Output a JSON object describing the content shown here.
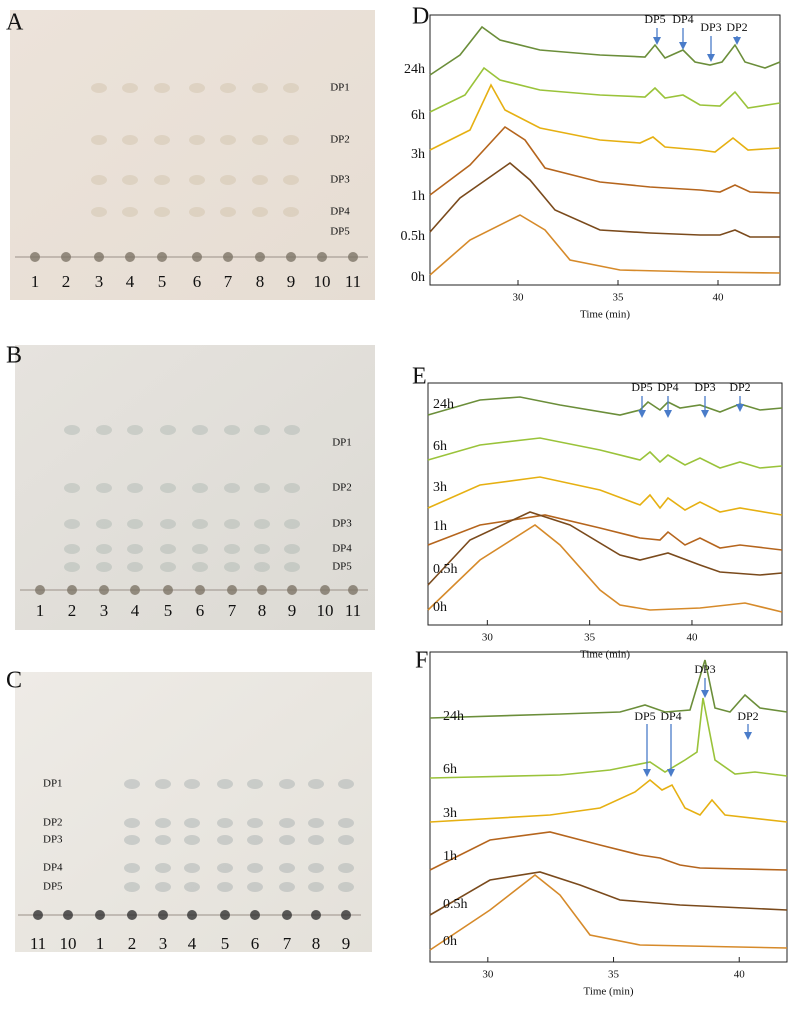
{
  "panels": [
    {
      "letter": "A",
      "lanes": [
        "1",
        "2",
        "3",
        "4",
        "5",
        "6",
        "7",
        "8",
        "9",
        "10",
        "11"
      ],
      "markers": [
        "DP1",
        "DP2",
        "DP3",
        "DP4",
        "DP5"
      ]
    },
    {
      "letter": "B",
      "lanes": [
        "1",
        "2",
        "3",
        "4",
        "5",
        "6",
        "7",
        "8",
        "9",
        "10",
        "11"
      ],
      "markers": [
        "DP1",
        "DP2",
        "DP3",
        "DP4",
        "DP5"
      ]
    },
    {
      "letter": "C",
      "lanes": [
        "11",
        "10",
        "1",
        "2",
        "3",
        "4",
        "5",
        "6",
        "7",
        "8",
        "9"
      ],
      "markers": [
        "DP1",
        "DP2",
        "DP3",
        "DP4",
        "DP5"
      ]
    }
  ],
  "charts": [
    {
      "letter": "D",
      "x_label": "Time (min)",
      "xlim": [
        25.6,
        43.1
      ],
      "xticks": [
        30,
        35,
        40
      ],
      "traces": [
        "24h",
        "6h",
        "3h",
        "1h",
        "0.5h",
        "0h"
      ],
      "peaks": [
        "DP5",
        "DP4",
        "DP3",
        "DP2"
      ]
    },
    {
      "letter": "E",
      "x_label": "Time (min)",
      "xlim": [
        27.1,
        44.4
      ],
      "xticks": [
        30,
        35,
        40
      ],
      "traces": [
        "24h",
        "6h",
        "3h",
        "1h",
        "0.5h",
        "0h"
      ],
      "peaks": [
        "DP5",
        "DP4",
        "DP3",
        "DP2"
      ]
    },
    {
      "letter": "F",
      "x_label": "Time (min)",
      "xlim": [
        27.7,
        41.9
      ],
      "xticks": [
        30,
        35,
        40
      ],
      "traces": [
        "24h",
        "6h",
        "3h",
        "1h",
        "0.5h",
        "0h"
      ],
      "peaks": [
        "DP5",
        "DP4",
        "DP3",
        "DP2"
      ]
    }
  ]
}
